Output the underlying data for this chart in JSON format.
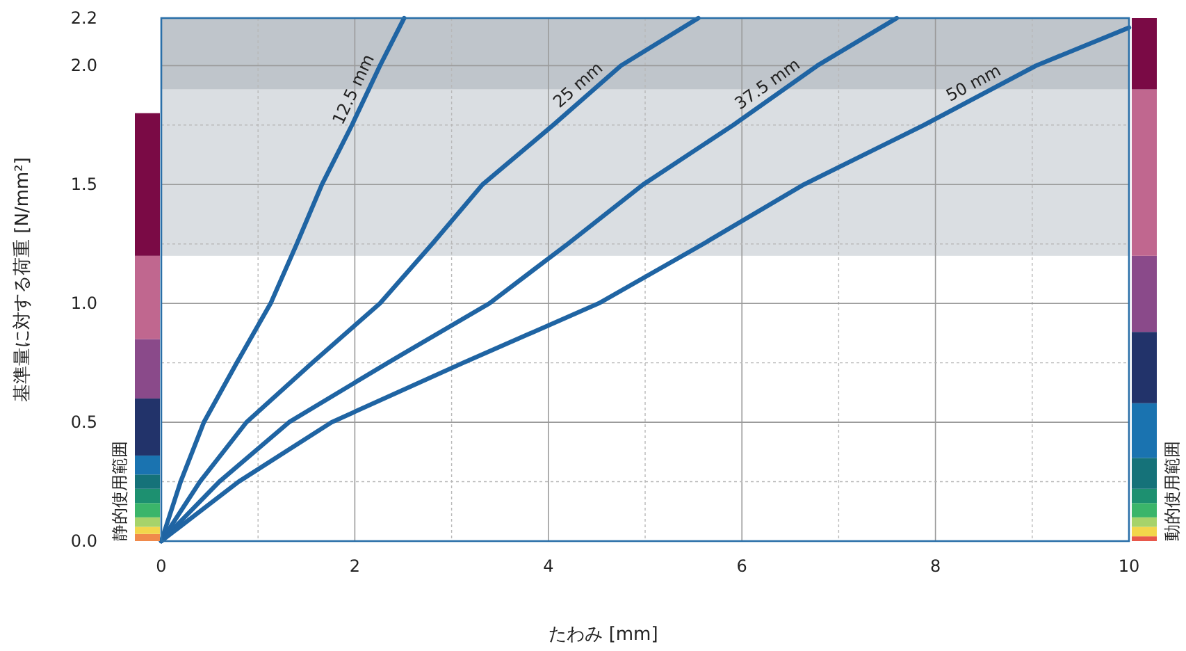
{
  "chart_data": {
    "type": "line",
    "xlabel": "たわみ [mm]",
    "ylabel": "基準量に対する荷重 [N/mm²]",
    "xlim": [
      0,
      10
    ],
    "xticks": [
      0,
      2,
      4,
      6,
      8,
      10
    ],
    "ylim": [
      0,
      2.2
    ],
    "yticks": [
      {
        "value": 0,
        "label": "0.0"
      },
      {
        "value": 0.5,
        "label": "0.5"
      },
      {
        "value": 1,
        "label": "1.0"
      },
      {
        "value": 1.5,
        "label": "1.5"
      },
      {
        "value": 2,
        "label": "2.0"
      },
      2.2
    ],
    "grid": true,
    "marker": "none",
    "line_style": "solid",
    "series": [
      {
        "name": "12.5 mm",
        "color": "#1f64a3",
        "x": [
          0,
          0.2,
          0.44,
          0.78,
          1.13,
          1.4,
          1.66,
          1.97,
          2.26,
          2.51
        ],
        "values": [
          0,
          0.25,
          0.5,
          0.75,
          1.0,
          1.25,
          1.5,
          1.75,
          2.0,
          2.2
        ]
      },
      {
        "name": "25 mm",
        "color": "#1f64a3",
        "x": [
          0,
          0.4,
          0.88,
          1.56,
          2.26,
          2.8,
          3.32,
          4.05,
          4.75,
          5.55
        ],
        "values": [
          0,
          0.25,
          0.5,
          0.75,
          1.0,
          1.25,
          1.5,
          1.75,
          2.0,
          2.2
        ]
      },
      {
        "name": "37.5 mm",
        "color": "#1f64a3",
        "x": [
          0,
          0.6,
          1.32,
          2.34,
          3.39,
          4.2,
          4.98,
          5.91,
          6.78,
          7.6
        ],
        "values": [
          0,
          0.25,
          0.5,
          0.75,
          1.0,
          1.25,
          1.5,
          1.75,
          2.0,
          2.2
        ]
      },
      {
        "name": "50 mm",
        "color": "#1f64a3",
        "x": [
          0,
          0.8,
          1.76,
          3.12,
          4.52,
          5.6,
          6.64,
          7.88,
          9.04,
          10
        ],
        "values": [
          0,
          0.25,
          0.5,
          0.75,
          1.0,
          1.25,
          1.5,
          1.75,
          2.0,
          2.16
        ]
      }
    ],
    "bands": [
      {
        "axis": "y",
        "from": 1.2,
        "to": 1.9,
        "color": "#dadee2"
      },
      {
        "axis": "y",
        "from": 1.9,
        "to": 2.2,
        "color": "#bfc5cb"
      }
    ],
    "annotations": [
      "静的使用範囲",
      "動的使用範囲"
    ]
  }
}
